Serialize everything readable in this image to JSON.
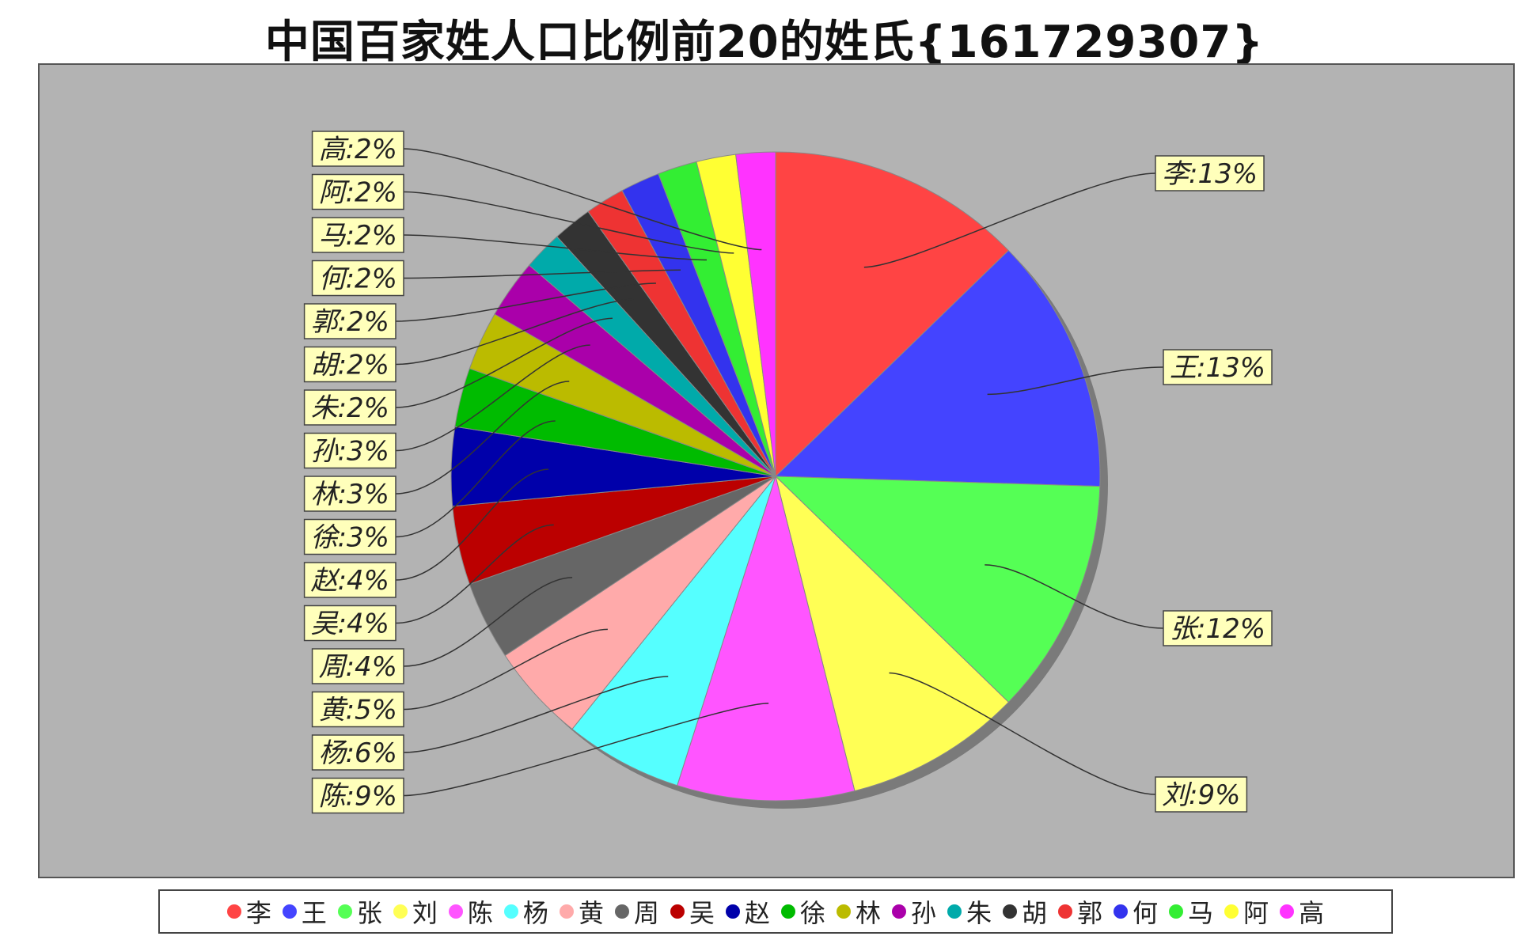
{
  "chart_data": {
    "type": "pie",
    "title": "中国百家姓人口比例前20的姓氏{161729307}",
    "legend_position": "bottom",
    "slices": [
      {
        "name": "李",
        "label": "李:13%",
        "value": 13,
        "color": "#ff4444"
      },
      {
        "name": "王",
        "label": "王:13%",
        "value": 13,
        "color": "#4444ff"
      },
      {
        "name": "张",
        "label": "张:12%",
        "value": 12,
        "color": "#55ff55"
      },
      {
        "name": "刘",
        "label": "刘:9%",
        "value": 9,
        "color": "#ffff55"
      },
      {
        "name": "陈",
        "label": "陈:9%",
        "value": 9,
        "color": "#ff55ff"
      },
      {
        "name": "杨",
        "label": "杨:6%",
        "value": 6,
        "color": "#55ffff"
      },
      {
        "name": "黄",
        "label": "黄:5%",
        "value": 5,
        "color": "#ffaaaa"
      },
      {
        "name": "周",
        "label": "周:4%",
        "value": 4,
        "color": "#666666"
      },
      {
        "name": "吴",
        "label": "吴:4%",
        "value": 4,
        "color": "#bb0000"
      },
      {
        "name": "赵",
        "label": "赵:4%",
        "value": 4,
        "color": "#0000aa"
      },
      {
        "name": "徐",
        "label": "徐:3%",
        "value": 3,
        "color": "#00bb00"
      },
      {
        "name": "林",
        "label": "林:3%",
        "value": 3,
        "color": "#bbbb00"
      },
      {
        "name": "孙",
        "label": "孙:3%",
        "value": 3,
        "color": "#aa00aa"
      },
      {
        "name": "朱",
        "label": "朱:2%",
        "value": 2,
        "color": "#00aaaa"
      },
      {
        "name": "胡",
        "label": "胡:2%",
        "value": 2,
        "color": "#333333"
      },
      {
        "name": "郭",
        "label": "郭:2%",
        "value": 2,
        "color": "#ee3333"
      },
      {
        "name": "何",
        "label": "何:2%",
        "value": 2,
        "color": "#3333ee"
      },
      {
        "name": "马",
        "label": "马:2%",
        "value": 2,
        "color": "#33ee33"
      },
      {
        "name": "阿",
        "label": "阿:2%",
        "value": 2,
        "color": "#ffff33"
      },
      {
        "name": "高",
        "label": "高:2%",
        "value": 2,
        "color": "#ff33ff"
      }
    ]
  }
}
